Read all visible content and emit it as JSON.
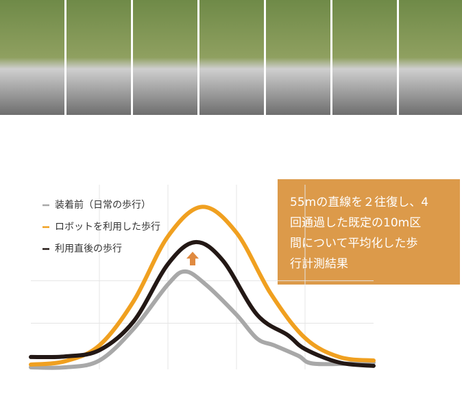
{
  "chart_data": {
    "type": "line",
    "series": [
      {
        "name": "装着前（日常の歩行）",
        "color": "#a8a8a8",
        "x": [
          0,
          10,
          20,
          30,
          40,
          45,
          51,
          60,
          66,
          71,
          78,
          83,
          100
        ],
        "values": [
          1.1,
          1.1,
          4.8,
          22,
          46,
          53,
          46,
          29.6,
          16.7,
          13,
          7.4,
          3,
          3.7
        ]
      },
      {
        "name": "ロボットを利用した歩行",
        "color": "#f0a020",
        "x": [
          0,
          10,
          20,
          30,
          40,
          50,
          60,
          70,
          80,
          90,
          100
        ],
        "values": [
          2.6,
          4.4,
          13,
          37,
          72,
          88,
          74,
          41,
          17,
          6.7,
          4.8
        ]
      },
      {
        "name": "利用直後の歩行",
        "color": "#231815",
        "x": [
          0,
          10,
          20,
          30,
          40,
          48,
          56,
          66,
          75,
          80,
          90,
          100
        ],
        "values": [
          6.7,
          7,
          10.4,
          26,
          57,
          68.9,
          59,
          29.6,
          18.5,
          11,
          3.7,
          1.9
        ]
      }
    ],
    "xlim": [
      0,
      100
    ],
    "xticks": [
      20,
      40,
      60,
      80
    ],
    "ylim": [
      0,
      100
    ],
    "yticks": [
      25,
      48
    ],
    "grid": true,
    "annotation": [
      "55mの直線を２往復し、4",
      "回通過した既定の10m区",
      "間について平均化した歩",
      "行計測結果"
    ]
  }
}
